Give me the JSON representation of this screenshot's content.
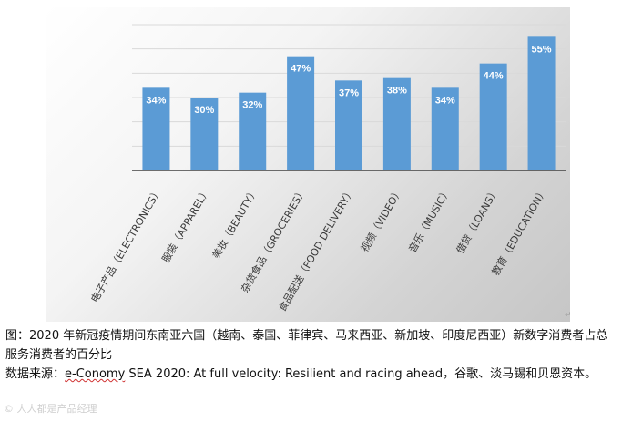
{
  "colors": {
    "bar": "#5b9bd5",
    "grid": "#d9d9d9",
    "axis": "#404040",
    "label": "#ffffff"
  },
  "chart_data": {
    "type": "bar",
    "categories": [
      "电子产品（ELECTRONICS）",
      "服装（APPAREL）",
      "美妆（BEAUTY）",
      "杂货食品（GROCERIES）",
      "食品配送（FOOD DELIVERY）",
      "视频（VIDEO）",
      "音乐（MUSIC）",
      "借贷（LOANS）",
      "教育（EDUCATION）"
    ],
    "values": [
      34,
      30,
      32,
      47,
      37,
      38,
      34,
      44,
      55
    ],
    "data_labels": [
      "34%",
      "30%",
      "32%",
      "47%",
      "37%",
      "38%",
      "34%",
      "44%",
      "55%"
    ],
    "unit": "%",
    "ylim": [
      0,
      60
    ],
    "gridlines": true,
    "title": "",
    "xlabel": "",
    "ylabel": ""
  },
  "caption": {
    "figure_text": "图：2020 年新冠疫情期间东南亚六国（越南、泰国、菲律宾、马来西亚、新加坡、印度尼西亚）新数字消费者占总服务消费者的百分比",
    "source_prefix": "数据来源：",
    "source_link": "e-Conomy",
    "source_rest": " SEA 2020: At full velocity: Resilient and racing ahead，谷歌、淡马锡和贝恩资本。"
  },
  "watermark": {
    "text": "© 人人都是产品经理"
  }
}
